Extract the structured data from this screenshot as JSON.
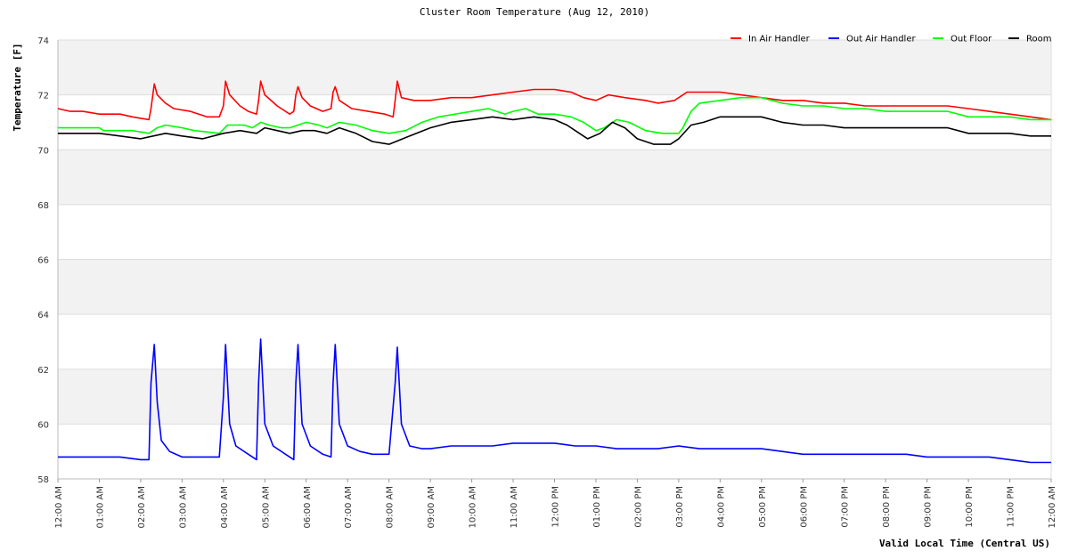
{
  "chart_data": {
    "type": "line",
    "title": "Cluster Room Temperature (Aug 12, 2010)",
    "xlabel": "Valid Local Time (Central US)",
    "ylabel": "Temperature [F]",
    "ylim": [
      58,
      74
    ],
    "yticks": [
      58,
      60,
      62,
      64,
      66,
      68,
      70,
      72,
      74
    ],
    "xlim": [
      0,
      24
    ],
    "xticks": [
      {
        "hour": 0,
        "label": "12:00 AM"
      },
      {
        "hour": 1,
        "label": "01:00 AM"
      },
      {
        "hour": 2,
        "label": "02:00 AM"
      },
      {
        "hour": 3,
        "label": "03:00 AM"
      },
      {
        "hour": 4,
        "label": "04:00 AM"
      },
      {
        "hour": 5,
        "label": "05:00 AM"
      },
      {
        "hour": 6,
        "label": "06:00 AM"
      },
      {
        "hour": 7,
        "label": "07:00 AM"
      },
      {
        "hour": 8,
        "label": "08:00 AM"
      },
      {
        "hour": 9,
        "label": "09:00 AM"
      },
      {
        "hour": 10,
        "label": "10:00 AM"
      },
      {
        "hour": 11,
        "label": "11:00 AM"
      },
      {
        "hour": 12,
        "label": "12:00 PM"
      },
      {
        "hour": 13,
        "label": "01:00 PM"
      },
      {
        "hour": 14,
        "label": "02:00 PM"
      },
      {
        "hour": 15,
        "label": "03:00 PM"
      },
      {
        "hour": 16,
        "label": "04:00 PM"
      },
      {
        "hour": 17,
        "label": "05:00 PM"
      },
      {
        "hour": 18,
        "label": "06:00 PM"
      },
      {
        "hour": 19,
        "label": "07:00 PM"
      },
      {
        "hour": 20,
        "label": "08:00 PM"
      },
      {
        "hour": 21,
        "label": "09:00 PM"
      },
      {
        "hour": 22,
        "label": "10:00 PM"
      },
      {
        "hour": 23,
        "label": "11:00 PM"
      },
      {
        "hour": 24,
        "label": "12:00 AM"
      }
    ],
    "grid": true,
    "band_fill": "#f2f2f2",
    "legend_position": "top-right",
    "series": [
      {
        "name": "In Air Handler",
        "color": "#ff0000",
        "points": [
          [
            0,
            71.5
          ],
          [
            0.3,
            71.4
          ],
          [
            0.6,
            71.4
          ],
          [
            1.0,
            71.3
          ],
          [
            1.5,
            71.3
          ],
          [
            1.8,
            71.2
          ],
          [
            2.2,
            71.1
          ],
          [
            2.25,
            71.5
          ],
          [
            2.33,
            72.4
          ],
          [
            2.4,
            72.0
          ],
          [
            2.6,
            71.7
          ],
          [
            2.8,
            71.5
          ],
          [
            3.2,
            71.4
          ],
          [
            3.6,
            71.2
          ],
          [
            3.9,
            71.2
          ],
          [
            4.0,
            71.6
          ],
          [
            4.05,
            72.5
          ],
          [
            4.15,
            72.0
          ],
          [
            4.4,
            71.6
          ],
          [
            4.6,
            71.4
          ],
          [
            4.8,
            71.3
          ],
          [
            4.85,
            71.8
          ],
          [
            4.9,
            72.5
          ],
          [
            5.0,
            72.0
          ],
          [
            5.3,
            71.6
          ],
          [
            5.6,
            71.3
          ],
          [
            5.7,
            71.4
          ],
          [
            5.75,
            72.0
          ],
          [
            5.8,
            72.3
          ],
          [
            5.9,
            71.9
          ],
          [
            6.1,
            71.6
          ],
          [
            6.4,
            71.4
          ],
          [
            6.6,
            71.5
          ],
          [
            6.65,
            72.1
          ],
          [
            6.7,
            72.3
          ],
          [
            6.8,
            71.8
          ],
          [
            7.1,
            71.5
          ],
          [
            7.5,
            71.4
          ],
          [
            7.9,
            71.3
          ],
          [
            8.1,
            71.2
          ],
          [
            8.15,
            71.8
          ],
          [
            8.2,
            72.5
          ],
          [
            8.3,
            71.9
          ],
          [
            8.6,
            71.8
          ],
          [
            9.0,
            71.8
          ],
          [
            9.5,
            71.9
          ],
          [
            10.0,
            71.9
          ],
          [
            10.5,
            72.0
          ],
          [
            11.0,
            72.1
          ],
          [
            11.5,
            72.2
          ],
          [
            12.0,
            72.2
          ],
          [
            12.4,
            72.1
          ],
          [
            12.7,
            71.9
          ],
          [
            13.0,
            71.8
          ],
          [
            13.3,
            72.0
          ],
          [
            13.7,
            71.9
          ],
          [
            14.2,
            71.8
          ],
          [
            14.5,
            71.7
          ],
          [
            14.9,
            71.8
          ],
          [
            15.2,
            72.1
          ],
          [
            15.6,
            72.1
          ],
          [
            16.0,
            72.1
          ],
          [
            16.5,
            72.0
          ],
          [
            17.0,
            71.9
          ],
          [
            17.5,
            71.8
          ],
          [
            18.0,
            71.8
          ],
          [
            18.5,
            71.7
          ],
          [
            19.0,
            71.7
          ],
          [
            19.5,
            71.6
          ],
          [
            20.0,
            71.6
          ],
          [
            20.5,
            71.6
          ],
          [
            21.0,
            71.6
          ],
          [
            21.5,
            71.6
          ],
          [
            22.0,
            71.5
          ],
          [
            22.5,
            71.4
          ],
          [
            23.0,
            71.3
          ],
          [
            23.5,
            71.2
          ],
          [
            24.0,
            71.1
          ]
        ]
      },
      {
        "name": "Out Air Handler",
        "color": "#0000ff",
        "points": [
          [
            0,
            58.8
          ],
          [
            0.5,
            58.8
          ],
          [
            1.0,
            58.8
          ],
          [
            1.5,
            58.8
          ],
          [
            2.0,
            58.7
          ],
          [
            2.2,
            58.7
          ],
          [
            2.25,
            61.5
          ],
          [
            2.33,
            62.9
          ],
          [
            2.4,
            60.8
          ],
          [
            2.5,
            59.4
          ],
          [
            2.7,
            59.0
          ],
          [
            3.0,
            58.8
          ],
          [
            3.5,
            58.8
          ],
          [
            3.9,
            58.8
          ],
          [
            4.0,
            61.0
          ],
          [
            4.05,
            62.9
          ],
          [
            4.15,
            60.0
          ],
          [
            4.3,
            59.2
          ],
          [
            4.6,
            58.9
          ],
          [
            4.8,
            58.7
          ],
          [
            4.85,
            61.5
          ],
          [
            4.9,
            63.1
          ],
          [
            5.0,
            60.0
          ],
          [
            5.2,
            59.2
          ],
          [
            5.5,
            58.9
          ],
          [
            5.7,
            58.7
          ],
          [
            5.75,
            61.5
          ],
          [
            5.8,
            62.9
          ],
          [
            5.9,
            60.0
          ],
          [
            6.1,
            59.2
          ],
          [
            6.4,
            58.9
          ],
          [
            6.6,
            58.8
          ],
          [
            6.65,
            61.5
          ],
          [
            6.7,
            62.9
          ],
          [
            6.8,
            60.0
          ],
          [
            7.0,
            59.2
          ],
          [
            7.3,
            59.0
          ],
          [
            7.6,
            58.9
          ],
          [
            8.0,
            58.9
          ],
          [
            8.15,
            61.5
          ],
          [
            8.2,
            62.8
          ],
          [
            8.3,
            60.0
          ],
          [
            8.5,
            59.2
          ],
          [
            8.8,
            59.1
          ],
          [
            9.0,
            59.1
          ],
          [
            9.5,
            59.2
          ],
          [
            10.0,
            59.2
          ],
          [
            10.5,
            59.2
          ],
          [
            11.0,
            59.3
          ],
          [
            11.5,
            59.3
          ],
          [
            12.0,
            59.3
          ],
          [
            12.5,
            59.2
          ],
          [
            13.0,
            59.2
          ],
          [
            13.5,
            59.1
          ],
          [
            14.0,
            59.1
          ],
          [
            14.5,
            59.1
          ],
          [
            15.0,
            59.2
          ],
          [
            15.5,
            59.1
          ],
          [
            16.0,
            59.1
          ],
          [
            16.5,
            59.1
          ],
          [
            17.0,
            59.1
          ],
          [
            17.5,
            59.0
          ],
          [
            18.0,
            58.9
          ],
          [
            18.5,
            58.9
          ],
          [
            19.0,
            58.9
          ],
          [
            19.5,
            58.9
          ],
          [
            20.0,
            58.9
          ],
          [
            20.5,
            58.9
          ],
          [
            21.0,
            58.8
          ],
          [
            21.5,
            58.8
          ],
          [
            22.0,
            58.8
          ],
          [
            22.5,
            58.8
          ],
          [
            23.0,
            58.7
          ],
          [
            23.5,
            58.6
          ],
          [
            24.0,
            58.6
          ]
        ]
      },
      {
        "name": "Out Floor",
        "color": "#00ff00",
        "points": [
          [
            0,
            70.8
          ],
          [
            0.5,
            70.8
          ],
          [
            1.0,
            70.8
          ],
          [
            1.1,
            70.7
          ],
          [
            1.5,
            70.7
          ],
          [
            1.8,
            70.7
          ],
          [
            2.2,
            70.6
          ],
          [
            2.4,
            70.8
          ],
          [
            2.6,
            70.9
          ],
          [
            3.0,
            70.8
          ],
          [
            3.3,
            70.7
          ],
          [
            3.9,
            70.6
          ],
          [
            4.1,
            70.9
          ],
          [
            4.5,
            70.9
          ],
          [
            4.7,
            70.8
          ],
          [
            4.9,
            71.0
          ],
          [
            5.1,
            70.9
          ],
          [
            5.4,
            70.8
          ],
          [
            5.6,
            70.8
          ],
          [
            5.8,
            70.9
          ],
          [
            6.0,
            71.0
          ],
          [
            6.3,
            70.9
          ],
          [
            6.5,
            70.8
          ],
          [
            6.8,
            71.0
          ],
          [
            7.2,
            70.9
          ],
          [
            7.6,
            70.7
          ],
          [
            8.0,
            70.6
          ],
          [
            8.4,
            70.7
          ],
          [
            8.8,
            71.0
          ],
          [
            9.2,
            71.2
          ],
          [
            9.6,
            71.3
          ],
          [
            10.0,
            71.4
          ],
          [
            10.4,
            71.5
          ],
          [
            10.8,
            71.3
          ],
          [
            11.0,
            71.4
          ],
          [
            11.3,
            71.5
          ],
          [
            11.6,
            71.3
          ],
          [
            12.0,
            71.3
          ],
          [
            12.4,
            71.2
          ],
          [
            12.7,
            71.0
          ],
          [
            13.0,
            70.7
          ],
          [
            13.2,
            70.8
          ],
          [
            13.5,
            71.1
          ],
          [
            13.8,
            71.0
          ],
          [
            14.2,
            70.7
          ],
          [
            14.6,
            70.6
          ],
          [
            15.0,
            70.6
          ],
          [
            15.1,
            70.8
          ],
          [
            15.3,
            71.4
          ],
          [
            15.5,
            71.7
          ],
          [
            16.0,
            71.8
          ],
          [
            16.5,
            71.9
          ],
          [
            17.0,
            71.9
          ],
          [
            17.5,
            71.7
          ],
          [
            18.0,
            71.6
          ],
          [
            18.5,
            71.6
          ],
          [
            19.0,
            71.5
          ],
          [
            19.5,
            71.5
          ],
          [
            20.0,
            71.4
          ],
          [
            20.5,
            71.4
          ],
          [
            21.0,
            71.4
          ],
          [
            21.5,
            71.4
          ],
          [
            22.0,
            71.2
          ],
          [
            22.5,
            71.2
          ],
          [
            23.0,
            71.2
          ],
          [
            23.5,
            71.1
          ],
          [
            24.0,
            71.1
          ]
        ]
      },
      {
        "name": "Room",
        "color": "#000000",
        "points": [
          [
            0,
            70.6
          ],
          [
            0.5,
            70.6
          ],
          [
            1.0,
            70.6
          ],
          [
            1.5,
            70.5
          ],
          [
            2.0,
            70.4
          ],
          [
            2.3,
            70.5
          ],
          [
            2.6,
            70.6
          ],
          [
            3.0,
            70.5
          ],
          [
            3.5,
            70.4
          ],
          [
            4.0,
            70.6
          ],
          [
            4.4,
            70.7
          ],
          [
            4.8,
            70.6
          ],
          [
            5.0,
            70.8
          ],
          [
            5.3,
            70.7
          ],
          [
            5.6,
            70.6
          ],
          [
            5.9,
            70.7
          ],
          [
            6.2,
            70.7
          ],
          [
            6.5,
            70.6
          ],
          [
            6.8,
            70.8
          ],
          [
            7.2,
            70.6
          ],
          [
            7.6,
            70.3
          ],
          [
            8.0,
            70.2
          ],
          [
            8.5,
            70.5
          ],
          [
            9.0,
            70.8
          ],
          [
            9.5,
            71.0
          ],
          [
            10.0,
            71.1
          ],
          [
            10.5,
            71.2
          ],
          [
            11.0,
            71.1
          ],
          [
            11.5,
            71.2
          ],
          [
            12.0,
            71.1
          ],
          [
            12.3,
            70.9
          ],
          [
            12.6,
            70.6
          ],
          [
            12.8,
            70.4
          ],
          [
            13.1,
            70.6
          ],
          [
            13.4,
            71.0
          ],
          [
            13.7,
            70.8
          ],
          [
            14.0,
            70.4
          ],
          [
            14.4,
            70.2
          ],
          [
            14.8,
            70.2
          ],
          [
            15.0,
            70.4
          ],
          [
            15.3,
            70.9
          ],
          [
            15.6,
            71.0
          ],
          [
            16.0,
            71.2
          ],
          [
            16.5,
            71.2
          ],
          [
            17.0,
            71.2
          ],
          [
            17.5,
            71.0
          ],
          [
            18.0,
            70.9
          ],
          [
            18.5,
            70.9
          ],
          [
            19.0,
            70.8
          ],
          [
            19.5,
            70.8
          ],
          [
            20.0,
            70.8
          ],
          [
            20.5,
            70.8
          ],
          [
            21.0,
            70.8
          ],
          [
            21.5,
            70.8
          ],
          [
            22.0,
            70.6
          ],
          [
            22.5,
            70.6
          ],
          [
            23.0,
            70.6
          ],
          [
            23.5,
            70.5
          ],
          [
            24.0,
            70.5
          ]
        ]
      }
    ]
  }
}
